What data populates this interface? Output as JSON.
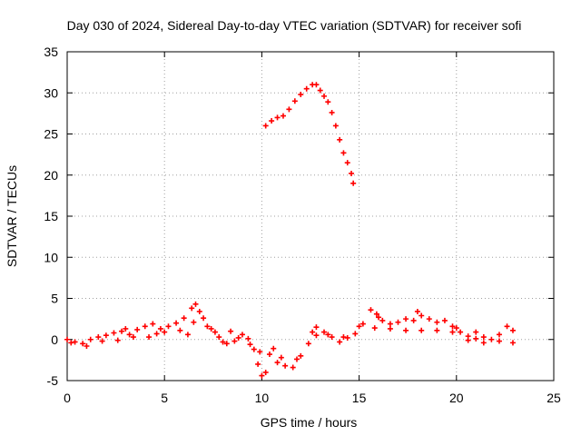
{
  "chart_data": {
    "type": "scatter",
    "title": "Day 030 of 2024, Sidereal Day-to-day VTEC variation (SDTVAR) for receiver sofi",
    "xlabel": "GPS time / hours",
    "ylabel": "SDTVAR / TECUs",
    "xlim": [
      0,
      25
    ],
    "ylim": [
      -5,
      35
    ],
    "x_ticks": [
      0,
      5,
      10,
      15,
      20,
      25
    ],
    "y_ticks": [
      -5,
      0,
      5,
      10,
      15,
      20,
      25,
      30,
      35
    ],
    "grid": true,
    "marker": "plus",
    "series": [
      {
        "name": "low-elevation band",
        "color": "#ff0000",
        "points": [
          [
            0.0,
            0.0
          ],
          [
            0.4,
            -0.3
          ],
          [
            0.8,
            -0.5
          ],
          [
            1.2,
            0.0
          ],
          [
            1.6,
            0.3
          ],
          [
            2.0,
            0.5
          ],
          [
            2.4,
            0.8
          ],
          [
            2.8,
            1.0
          ],
          [
            3.2,
            0.6
          ],
          [
            3.6,
            1.2
          ],
          [
            4.0,
            1.6
          ],
          [
            4.4,
            1.9
          ],
          [
            4.8,
            1.3
          ],
          [
            5.2,
            1.6
          ],
          [
            5.6,
            2.0
          ],
          [
            6.0,
            2.6
          ],
          [
            6.4,
            3.8
          ],
          [
            6.6,
            4.3
          ],
          [
            6.8,
            3.4
          ],
          [
            7.0,
            2.6
          ],
          [
            7.4,
            1.3
          ],
          [
            7.8,
            0.3
          ],
          [
            8.2,
            -0.5
          ],
          [
            8.6,
            -0.2
          ],
          [
            9.0,
            0.6
          ],
          [
            9.3,
            0.1
          ],
          [
            9.6,
            -1.2
          ],
          [
            9.8,
            -3.0
          ],
          [
            10.0,
            -4.4
          ],
          [
            10.2,
            -4.0
          ],
          [
            10.4,
            -1.8
          ],
          [
            10.8,
            -2.8
          ],
          [
            11.2,
            -3.2
          ],
          [
            11.6,
            -3.4
          ],
          [
            12.0,
            -2.0
          ],
          [
            12.4,
            -0.5
          ],
          [
            12.8,
            0.5
          ],
          [
            13.2,
            0.9
          ],
          [
            13.6,
            0.3
          ],
          [
            14.0,
            -0.3
          ],
          [
            14.4,
            0.2
          ],
          [
            14.8,
            0.7
          ],
          [
            15.2,
            1.9
          ],
          [
            15.6,
            3.6
          ],
          [
            15.9,
            3.1
          ],
          [
            16.2,
            2.3
          ],
          [
            16.6,
            1.9
          ],
          [
            17.0,
            2.1
          ],
          [
            17.4,
            2.5
          ],
          [
            17.8,
            2.3
          ],
          [
            18.2,
            2.9
          ],
          [
            18.6,
            2.5
          ],
          [
            19.0,
            2.1
          ],
          [
            19.4,
            2.3
          ],
          [
            19.8,
            1.6
          ],
          [
            20.2,
            0.9
          ],
          [
            20.6,
            0.4
          ],
          [
            21.0,
            0.9
          ],
          [
            21.4,
            0.3
          ],
          [
            21.8,
            0.0
          ],
          [
            22.2,
            0.6
          ],
          [
            22.6,
            1.6
          ],
          [
            22.9,
            1.1
          ],
          [
            22.9,
            -0.4
          ],
          [
            22.2,
            -0.2
          ],
          [
            21.4,
            -0.4
          ],
          [
            20.6,
            -0.1
          ],
          [
            19.8,
            0.9
          ],
          [
            19.0,
            1.1
          ],
          [
            18.2,
            1.1
          ],
          [
            17.4,
            1.1
          ],
          [
            16.6,
            1.3
          ],
          [
            15.8,
            1.4
          ],
          [
            15.0,
            1.6
          ],
          [
            14.2,
            0.3
          ],
          [
            13.4,
            0.6
          ],
          [
            12.6,
            0.9
          ],
          [
            11.8,
            -2.4
          ],
          [
            11.0,
            -2.2
          ],
          [
            10.6,
            -1.1
          ],
          [
            9.9,
            -1.5
          ],
          [
            9.4,
            -0.6
          ],
          [
            8.8,
            0.2
          ],
          [
            8.0,
            -0.3
          ],
          [
            7.2,
            1.6
          ],
          [
            6.5,
            2.1
          ],
          [
            5.8,
            1.1
          ],
          [
            5.0,
            0.9
          ],
          [
            4.2,
            0.3
          ],
          [
            3.4,
            0.3
          ],
          [
            2.6,
            -0.1
          ],
          [
            1.8,
            -0.2
          ],
          [
            1.0,
            -0.8
          ],
          [
            0.2,
            -0.4
          ],
          [
            6.2,
            0.6
          ],
          [
            7.6,
            0.9
          ],
          [
            8.4,
            1.0
          ],
          [
            3.0,
            1.3
          ],
          [
            4.6,
            0.7
          ],
          [
            16.0,
            2.7
          ],
          [
            18.0,
            3.4
          ],
          [
            20.0,
            1.4
          ],
          [
            21.0,
            0.1
          ],
          [
            12.8,
            1.5
          ]
        ]
      },
      {
        "name": "high arc",
        "color": "#ff0000",
        "points": [
          [
            10.2,
            26.0
          ],
          [
            10.5,
            26.6
          ],
          [
            10.8,
            27.0
          ],
          [
            11.1,
            27.2
          ],
          [
            11.4,
            28.0
          ],
          [
            11.7,
            29.0
          ],
          [
            12.0,
            29.8
          ],
          [
            12.3,
            30.5
          ],
          [
            12.6,
            31.0
          ],
          [
            12.8,
            31.0
          ],
          [
            13.0,
            30.3
          ],
          [
            13.2,
            29.6
          ],
          [
            13.4,
            28.9
          ],
          [
            13.6,
            27.6
          ],
          [
            13.8,
            26.0
          ],
          [
            14.0,
            24.3
          ],
          [
            14.2,
            22.7
          ],
          [
            14.4,
            21.5
          ],
          [
            14.6,
            20.2
          ],
          [
            14.7,
            19.0
          ]
        ]
      }
    ]
  }
}
